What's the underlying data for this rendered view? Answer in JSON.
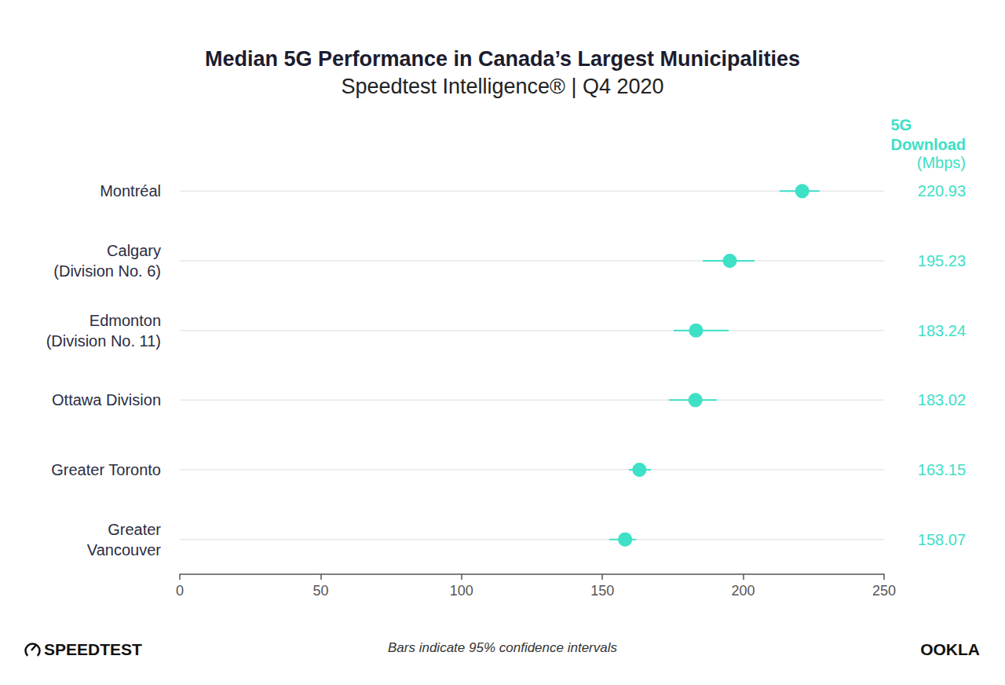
{
  "chart_data": {
    "type": "scatter",
    "orientation": "horizontal",
    "title": "Median 5G Performance in Canada’s Largest Municipalities",
    "subtitle": "Speedtest Intelligence® | Q4 2020",
    "categories": [
      "Montréal",
      "Calgary\n(Division No. 6)",
      "Edmonton\n(Division No. 11)",
      "Ottawa Division",
      "Greater Toronto",
      "Greater\nVancouver"
    ],
    "values": [
      220.93,
      195.23,
      183.24,
      183.02,
      163.15,
      158.07
    ],
    "ci_low": [
      212.9,
      185.6,
      175.3,
      173.6,
      159.4,
      152.4
    ],
    "ci_high": [
      227.1,
      204.0,
      194.8,
      190.6,
      167.2,
      162.0
    ],
    "color": "#3ee0c6",
    "xlim": [
      0,
      250
    ],
    "xticks": [
      0,
      50,
      100,
      150,
      200,
      250
    ],
    "grid": true,
    "data_labels": true,
    "value_header": "5G\nDownload",
    "value_unit": "(Mbps)",
    "annotations": [
      "Bars indicate 95% confidence intervals"
    ],
    "footer": {
      "left": "SPEEDTEST",
      "right": "OOKLA"
    }
  }
}
